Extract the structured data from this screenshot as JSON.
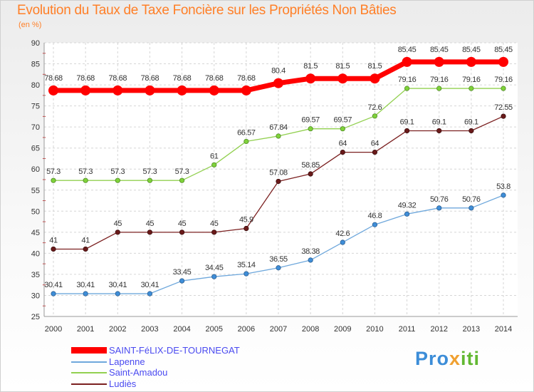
{
  "chart_data": {
    "type": "line",
    "title": "Evolution du Taux de Taxe Foncière sur les Propriétés Non Bâties",
    "ylabel": "(en %)",
    "xlabel": "",
    "ylim": [
      25,
      90
    ],
    "yticks": [
      25,
      30,
      35,
      40,
      45,
      50,
      55,
      60,
      65,
      70,
      75,
      80,
      85,
      90
    ],
    "categories": [
      "2000",
      "2001",
      "2002",
      "2003",
      "2004",
      "2005",
      "2006",
      "2007",
      "2008",
      "2009",
      "2010",
      "2011",
      "2012",
      "2013",
      "2014"
    ],
    "grid": true,
    "series": [
      {
        "name": "SAINT-FéLIX-DE-TOURNEGAT",
        "color": "#ff0000",
        "values": [
          78.68,
          78.68,
          78.68,
          78.68,
          78.68,
          78.68,
          78.68,
          80.4,
          81.5,
          81.5,
          81.5,
          85.45,
          85.45,
          85.45,
          85.45
        ],
        "labels": [
          "78.68",
          "78.68",
          "78.68",
          "78.68",
          "78.68",
          "78.68",
          "78.68",
          "80.4",
          "81.5",
          "81.5",
          "81.5",
          "85.45",
          "85.45",
          "85.45",
          "85.45"
        ]
      },
      {
        "name": "Lapenne",
        "color": "#6fa8dc",
        "values": [
          30.41,
          30.41,
          30.41,
          30.41,
          33.45,
          34.45,
          35.14,
          36.55,
          38.38,
          42.6,
          46.8,
          49.32,
          50.76,
          50.76,
          53.8
        ],
        "labels": [
          "30.41",
          "30.41",
          "30.41",
          "30.41",
          "33.45",
          "34.45",
          "35.14",
          "36.55",
          "38.38",
          "42.6",
          "46.8",
          "49.32",
          "50.76",
          "50.76",
          "53.8"
        ]
      },
      {
        "name": "Saint-Amadou",
        "color": "#92d050",
        "values": [
          57.3,
          57.3,
          57.3,
          57.3,
          57.3,
          61,
          66.57,
          67.84,
          69.57,
          69.57,
          72.6,
          79.16,
          79.16,
          79.16,
          79.16
        ],
        "labels": [
          "57.3",
          "57.3",
          "57.3",
          "57.3",
          "57.3",
          "61",
          "66.57",
          "67.84",
          "69.57",
          "69.57",
          "72.6",
          "79.16",
          "79.16",
          "79.16",
          "79.16"
        ]
      },
      {
        "name": "Ludiès",
        "color": "#7b2020",
        "values": [
          41,
          41,
          45,
          45,
          45,
          45,
          45.9,
          57.08,
          58.85,
          64,
          64,
          69.1,
          69.1,
          69.1,
          72.55
        ],
        "labels": [
          "41",
          "41",
          "45",
          "45",
          "45",
          "45",
          "45.9",
          "57.08",
          "58.85",
          "64",
          "64",
          "69.1",
          "69.1",
          "69.1",
          "72.55"
        ]
      }
    ]
  },
  "legend": {
    "items": [
      {
        "label": "SAINT-FéLIX-DE-TOURNEGAT",
        "color": "#ff0000"
      },
      {
        "label": "Lapenne",
        "color": "#6fa8dc"
      },
      {
        "label": "Saint-Amadou",
        "color": "#92d050"
      },
      {
        "label": "Ludiès",
        "color": "#7b2020"
      }
    ]
  },
  "logo": {
    "part1": "Pro",
    "part2": "x",
    "part3": "iti"
  }
}
